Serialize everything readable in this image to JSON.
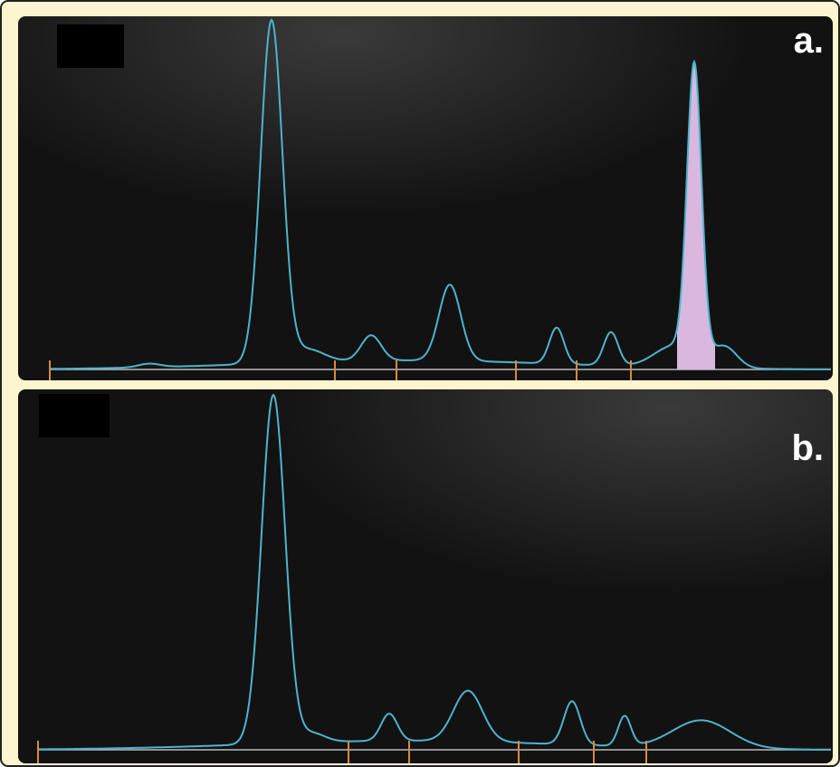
{
  "panel_a": {
    "label": "a."
  },
  "panel_b": {
    "label": "b."
  }
}
